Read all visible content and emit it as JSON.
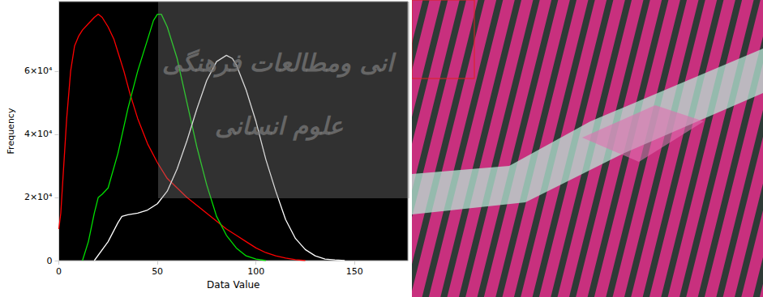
{
  "chart_data": {
    "type": "line",
    "xlabel": "Data Value",
    "ylabel": "Frequency",
    "annotations": [
      "انی ومطالعات فرهنگی",
      "علوم انسانی"
    ],
    "xlim": [
      0,
      177
    ],
    "xticks": [
      0,
      50,
      100,
      150
    ],
    "ylim": [
      0,
      82000
    ],
    "yticks": [
      0,
      {
        "value": 20000,
        "label": "2×10⁴"
      },
      {
        "value": 40000,
        "label": "4×10⁴"
      },
      {
        "value": 60000,
        "label": "6×10⁴"
      }
    ],
    "grid": false,
    "series": [
      {
        "color": "#ff0000",
        "x": [
          0,
          1,
          2,
          4,
          6,
          8,
          10,
          12,
          15,
          18,
          20,
          22,
          25,
          28,
          30,
          33,
          36,
          40,
          45,
          50,
          55,
          60,
          65,
          70,
          75,
          80,
          85,
          90,
          95,
          100,
          105,
          110,
          115,
          120,
          125
        ],
        "values": [
          10000,
          15000,
          25000,
          45000,
          60000,
          68000,
          71000,
          73000,
          75000,
          77000,
          78000,
          77000,
          74000,
          70000,
          66000,
          60000,
          53000,
          45000,
          37000,
          31000,
          26000,
          23000,
          20000,
          17500,
          15000,
          12500,
          10000,
          8000,
          6000,
          4000,
          2500,
          1500,
          800,
          300,
          0
        ]
      },
      {
        "color": "#00e000",
        "x": [
          12,
          15,
          18,
          20,
          22,
          25,
          30,
          35,
          40,
          45,
          48,
          50,
          52,
          55,
          60,
          65,
          70,
          75,
          80,
          85,
          90,
          95,
          100,
          105
        ],
        "values": [
          0,
          6000,
          15000,
          20000,
          21000,
          23000,
          34000,
          48000,
          60000,
          70000,
          76000,
          78000,
          78000,
          74000,
          64000,
          50000,
          36000,
          24000,
          14000,
          8000,
          4000,
          1500,
          500,
          0
        ]
      },
      {
        "color": "#ffffff",
        "x": [
          18,
          25,
          30,
          32,
          35,
          40,
          45,
          50,
          55,
          60,
          65,
          70,
          75,
          80,
          85,
          88,
          90,
          95,
          100,
          105,
          110,
          115,
          120,
          125,
          130,
          135,
          140,
          145
        ],
        "values": [
          0,
          6000,
          12000,
          14000,
          14500,
          15000,
          16000,
          18000,
          22000,
          29000,
          38000,
          48000,
          57000,
          63000,
          65000,
          64000,
          62000,
          54000,
          44000,
          32000,
          22000,
          13000,
          7000,
          3500,
          1500,
          500,
          200,
          0
        ]
      }
    ]
  }
}
